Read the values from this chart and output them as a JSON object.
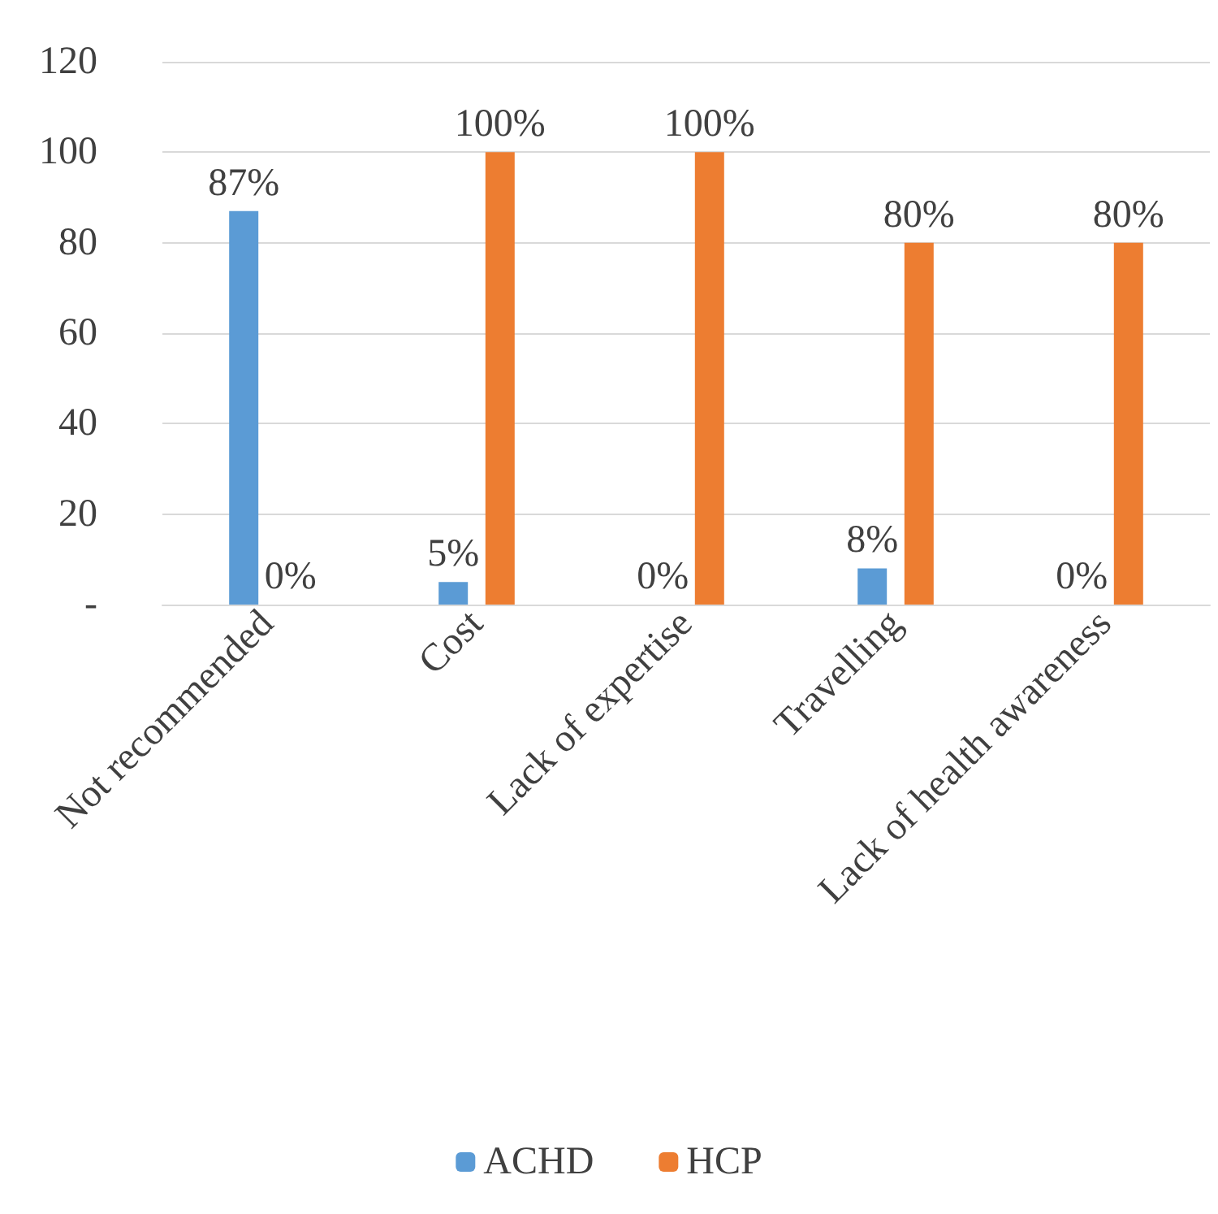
{
  "chart_data": {
    "type": "bar",
    "categories": [
      "Not recommended",
      "Cost",
      "Lack of expertise",
      "Travelling",
      "Lack of health awareness"
    ],
    "series": [
      {
        "name": "ACHD",
        "color": "#5b9bd5",
        "values": [
          87,
          5,
          0,
          8,
          0
        ],
        "value_labels": [
          "87%",
          "5%",
          "0%",
          "8%",
          "0%"
        ]
      },
      {
        "name": "HCP",
        "color": "#ed7d31",
        "values": [
          0,
          100,
          100,
          80,
          80
        ],
        "value_labels": [
          "0%",
          "100%",
          "100%",
          "80%",
          "80%"
        ]
      }
    ],
    "ylim": [
      0,
      120
    ],
    "yticks": [
      {
        "value": 0,
        "label": "-"
      },
      20,
      40,
      60,
      80,
      100,
      120
    ],
    "grid": "y",
    "legend": "bottom"
  }
}
